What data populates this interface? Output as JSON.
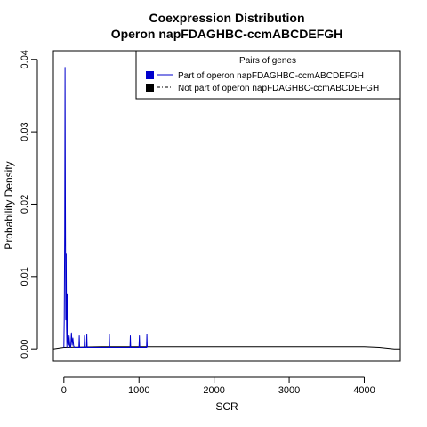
{
  "chart_data": {
    "type": "line",
    "title": "Coexpression Distribution",
    "subtitle": "Operon napFDAGHBC-ccmABCDEFGH",
    "xlabel": "SCR",
    "ylabel": "Probability Density",
    "xlim": [
      -140,
      4480
    ],
    "ylim": [
      -0.0017,
      0.0412
    ],
    "x_ticks": [
      0,
      1000,
      2000,
      3000,
      4000
    ],
    "x_tick_labels": [
      "0",
      "1000",
      "2000",
      "3000",
      "4000"
    ],
    "y_ticks": [
      0.0,
      0.01,
      0.02,
      0.03,
      0.04
    ],
    "y_tick_labels": [
      "0.00",
      "0.01",
      "0.02",
      "0.03",
      "0.04"
    ],
    "legend": {
      "title": "Pairs of genes",
      "placement": "top-right",
      "entries": [
        {
          "label": "Part of operon napFDAGHBC-ccmABCDEFGH",
          "color": "#0000cc",
          "line": "solid"
        },
        {
          "label": "Not part of operon napFDAGHBC-ccmABCDEFGH",
          "color": "#000000",
          "line": "dotdash"
        }
      ]
    },
    "series": [
      {
        "name": "Part of operon napFDAGHBC-ccmABCDEFGH",
        "color": "#0000cc",
        "x": [
          0,
          5,
          10,
          15,
          20,
          25,
          30,
          35,
          40,
          45,
          50,
          55,
          60,
          65,
          70,
          80,
          90,
          100,
          110,
          120,
          130,
          140,
          150,
          175,
          200,
          205,
          210,
          250,
          270,
          275,
          280,
          300,
          305,
          310,
          400,
          500,
          600,
          605,
          610,
          700,
          800,
          880,
          885,
          890,
          950,
          1000,
          1005,
          1010,
          1050,
          1100,
          1105,
          1110
        ],
        "y": [
          0.0002,
          0.004,
          0.016,
          0.0389,
          0.02,
          0.004,
          0.0132,
          0.003,
          0.0002,
          0.0076,
          0.0012,
          0.0005,
          0.0015,
          0.0005,
          0.0018,
          0.0003,
          0.0002,
          0.0022,
          0.0005,
          0.0015,
          0.0004,
          0.0002,
          0.0002,
          0.0002,
          0.0002,
          0.0018,
          0.0002,
          0.0002,
          0.0002,
          0.0018,
          0.0002,
          0.0002,
          0.002,
          0.0002,
          0.0002,
          0.0002,
          0.0002,
          0.002,
          0.0002,
          0.0002,
          0.0002,
          0.0002,
          0.0018,
          0.0002,
          0.0002,
          0.0002,
          0.0018,
          0.0002,
          0.0002,
          0.0002,
          0.002,
          0.0002
        ]
      },
      {
        "name": "Not part of operon napFDAGHBC-ccmABCDEFGH",
        "color": "#000000",
        "x": [
          -140,
          0,
          500,
          1000,
          1500,
          2000,
          2500,
          3000,
          3500,
          4000,
          4100,
          4200,
          4300,
          4400,
          4480
        ],
        "y": [
          0.0,
          0.0002,
          0.0003,
          0.0003,
          0.0003,
          0.0003,
          0.0003,
          0.0003,
          0.0003,
          0.0003,
          0.00025,
          0.0002,
          0.0001,
          0.0,
          0.0
        ]
      }
    ]
  }
}
